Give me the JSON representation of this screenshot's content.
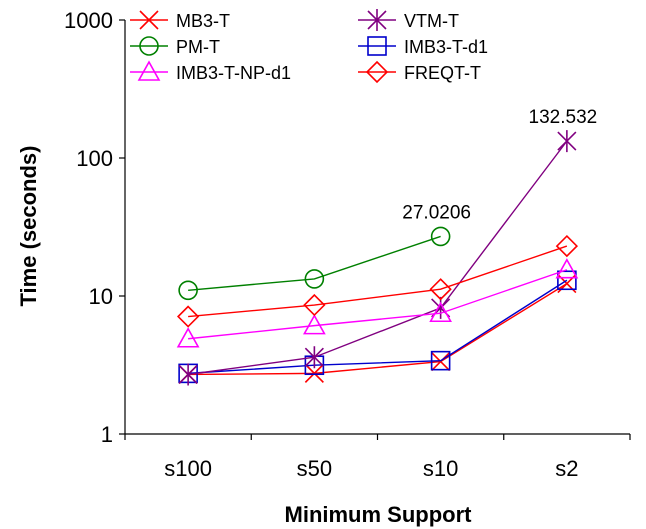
{
  "chart_data": {
    "type": "line",
    "title": "",
    "xlabel": "Minimum Support",
    "ylabel": "Time (seconds)",
    "yscale": "log",
    "ylim": [
      1,
      1000
    ],
    "yticks": [
      "1",
      "10",
      "100",
      "1000"
    ],
    "categories": [
      "s100",
      "s50",
      "s10",
      "s2"
    ],
    "grid": false,
    "legend_position": "top",
    "series": [
      {
        "name": "MB3-T",
        "color": "#ff0000",
        "marker": "x",
        "values": [
          2.7,
          2.75,
          3.35,
          12.3
        ]
      },
      {
        "name": "VTM-T",
        "color": "#800080",
        "marker": "asterisk",
        "values": [
          2.7,
          3.6,
          8.2,
          132.532
        ]
      },
      {
        "name": "PM-T",
        "color": "#008000",
        "marker": "circle",
        "values": [
          11.0,
          13.3,
          27.0206,
          null
        ]
      },
      {
        "name": "IMB3-T-d1",
        "color": "#0000cc",
        "marker": "square",
        "values": [
          2.75,
          3.15,
          3.4,
          13.0
        ]
      },
      {
        "name": "IMB3-T-NP-d1",
        "color": "#ff00ff",
        "marker": "triangle",
        "values": [
          4.9,
          6.1,
          7.5,
          15.5
        ]
      },
      {
        "name": "FREQT-T",
        "color": "#ff0000",
        "marker": "diamond",
        "values": [
          7.1,
          8.6,
          11.2,
          23.0
        ]
      }
    ],
    "annotations": [
      {
        "text": "27.0206",
        "series": "PM-T",
        "category": "s10"
      },
      {
        "text": "132.532",
        "series": "VTM-T",
        "category": "s2"
      }
    ]
  }
}
